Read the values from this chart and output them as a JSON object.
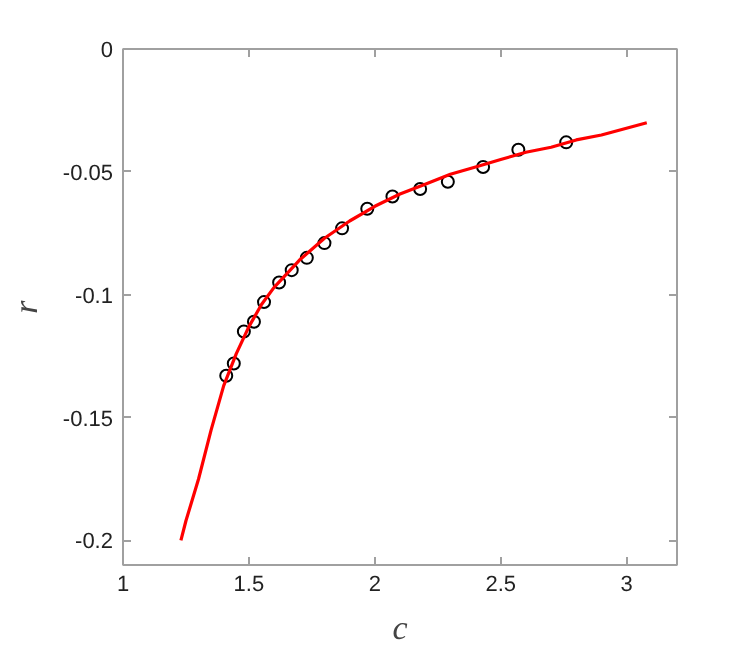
{
  "chart_data": {
    "type": "scatter",
    "xlabel": "c",
    "ylabel": "r",
    "xlim": [
      1,
      3.2
    ],
    "ylim": [
      -0.21,
      0
    ],
    "xticks": [
      1,
      1.5,
      2,
      2.5,
      3
    ],
    "yticks": [
      -0.2,
      -0.15,
      -0.1,
      -0.05,
      0
    ],
    "grid": false,
    "series": [
      {
        "color": "#000000",
        "marker": "circle",
        "x": [
          1.41,
          1.44,
          1.48,
          1.52,
          1.56,
          1.62,
          1.67,
          1.73,
          1.8,
          1.87,
          1.97,
          2.07,
          2.18,
          2.29,
          2.43,
          2.57,
          2.76
        ],
        "values": [
          -0.133,
          -0.128,
          -0.115,
          -0.111,
          -0.103,
          -0.095,
          -0.09,
          -0.085,
          -0.079,
          -0.073,
          -0.065,
          -0.06,
          -0.057,
          -0.054,
          -0.048,
          -0.041,
          -0.038
        ]
      },
      {
        "type": "line",
        "color": "#ff0000",
        "marker": "none",
        "line_style": "solid",
        "x": [
          1.23,
          1.25,
          1.3,
          1.35,
          1.4,
          1.45,
          1.5,
          1.55,
          1.6,
          1.7,
          1.8,
          1.9,
          2.0,
          2.1,
          2.2,
          2.3,
          2.4,
          2.5,
          2.6,
          2.7,
          2.8,
          2.9,
          3.08
        ],
        "values": [
          -0.2,
          -0.192,
          -0.175,
          -0.155,
          -0.137,
          -0.124,
          -0.113,
          -0.104,
          -0.097,
          -0.086,
          -0.077,
          -0.07,
          -0.064,
          -0.059,
          -0.055,
          -0.051,
          -0.048,
          -0.045,
          -0.042,
          -0.04,
          -0.037,
          -0.035,
          -0.03
        ]
      }
    ]
  }
}
